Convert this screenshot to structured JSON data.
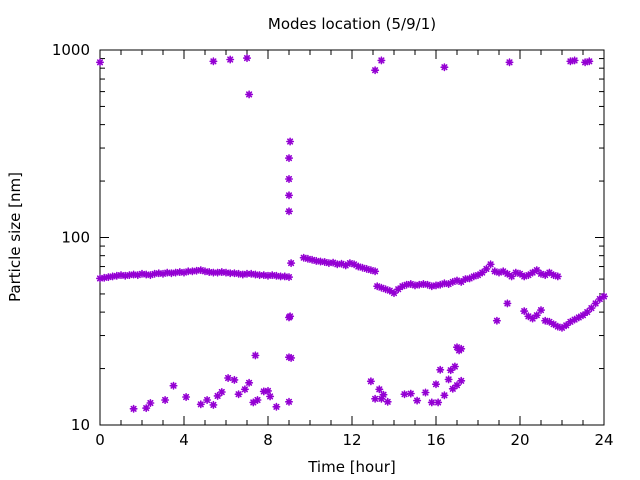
{
  "chart_data": {
    "type": "scatter",
    "title": "Modes location (5/9/1)",
    "xlabel": "Time [hour]",
    "ylabel": "Particle size [nm]",
    "xlim": [
      0,
      24
    ],
    "ylim": [
      10,
      1000
    ],
    "yscale": "log",
    "grid": false,
    "legend": "none",
    "x_ticks": [
      0,
      4,
      8,
      12,
      16,
      20,
      24
    ],
    "x_tick_labels": [
      "0",
      "4",
      "8",
      "12",
      "16",
      "20",
      "24"
    ],
    "y_ticks": [
      10,
      100,
      1000
    ],
    "y_tick_labels": [
      "10",
      "100",
      "1000"
    ],
    "marker": "asterisk",
    "series": [
      {
        "color": "#9400d3",
        "points": [
          [
            0.0,
            860
          ],
          [
            5.4,
            870
          ],
          [
            6.2,
            890
          ],
          [
            7.0,
            905
          ],
          [
            7.1,
            580
          ],
          [
            13.1,
            780
          ],
          [
            13.4,
            880
          ],
          [
            16.4,
            810
          ],
          [
            19.5,
            860
          ],
          [
            22.4,
            870
          ],
          [
            22.6,
            880
          ],
          [
            23.1,
            860
          ],
          [
            23.3,
            870
          ],
          [
            9.05,
            325
          ],
          [
            9.0,
            265
          ],
          [
            9.0,
            205
          ],
          [
            9.0,
            168
          ],
          [
            9.0,
            138
          ],
          [
            9.1,
            73
          ],
          [
            9.0,
            37.5
          ],
          [
            9.05,
            38
          ],
          [
            9.0,
            23
          ],
          [
            9.1,
            22.8
          ],
          [
            9.0,
            13.3
          ],
          [
            0.0,
            60.5
          ],
          [
            0.2,
            61
          ],
          [
            0.4,
            61.5
          ],
          [
            0.6,
            62
          ],
          [
            0.8,
            62.5
          ],
          [
            1.0,
            63
          ],
          [
            1.2,
            62.5
          ],
          [
            1.4,
            63
          ],
          [
            1.6,
            63.5
          ],
          [
            1.8,
            63
          ],
          [
            2.0,
            64
          ],
          [
            2.2,
            63.5
          ],
          [
            2.4,
            63
          ],
          [
            2.6,
            64
          ],
          [
            2.8,
            64.5
          ],
          [
            3.0,
            64
          ],
          [
            3.2,
            65
          ],
          [
            3.4,
            64.5
          ],
          [
            3.6,
            65
          ],
          [
            3.8,
            65.5
          ],
          [
            4.0,
            65
          ],
          [
            4.2,
            66
          ],
          [
            4.4,
            66
          ],
          [
            4.6,
            66.5
          ],
          [
            4.8,
            67
          ],
          [
            5.0,
            66
          ],
          [
            5.2,
            65.5
          ],
          [
            5.4,
            65
          ],
          [
            5.6,
            65
          ],
          [
            5.8,
            65.5
          ],
          [
            6.0,
            65
          ],
          [
            6.2,
            64.5
          ],
          [
            6.4,
            64.5
          ],
          [
            6.6,
            64
          ],
          [
            6.8,
            63.5
          ],
          [
            7.0,
            64
          ],
          [
            7.2,
            64
          ],
          [
            7.4,
            63.5
          ],
          [
            7.6,
            63
          ],
          [
            7.8,
            63
          ],
          [
            8.0,
            62.5
          ],
          [
            8.2,
            63
          ],
          [
            8.4,
            62.5
          ],
          [
            8.6,
            62
          ],
          [
            8.8,
            62
          ],
          [
            9.0,
            61.5
          ],
          [
            9.7,
            78
          ],
          [
            9.9,
            77
          ],
          [
            10.1,
            76
          ],
          [
            10.3,
            75
          ],
          [
            10.5,
            74.5
          ],
          [
            10.7,
            74
          ],
          [
            10.9,
            73
          ],
          [
            11.1,
            73.5
          ],
          [
            11.3,
            72
          ],
          [
            11.5,
            72.5
          ],
          [
            11.7,
            71
          ],
          [
            11.9,
            73
          ],
          [
            12.1,
            72
          ],
          [
            12.3,
            70
          ],
          [
            12.5,
            69
          ],
          [
            12.7,
            68
          ],
          [
            12.9,
            67
          ],
          [
            13.1,
            66
          ],
          [
            13.2,
            55
          ],
          [
            13.4,
            54
          ],
          [
            13.6,
            53
          ],
          [
            13.8,
            52
          ],
          [
            14.0,
            50.5
          ],
          [
            14.2,
            53
          ],
          [
            14.4,
            55
          ],
          [
            14.6,
            56
          ],
          [
            14.8,
            56.5
          ],
          [
            15.0,
            55.5
          ],
          [
            15.2,
            56
          ],
          [
            15.4,
            56.5
          ],
          [
            15.6,
            56
          ],
          [
            15.8,
            55
          ],
          [
            16.0,
            55.5
          ],
          [
            16.2,
            56
          ],
          [
            16.4,
            57
          ],
          [
            16.6,
            56.5
          ],
          [
            16.8,
            58
          ],
          [
            17.0,
            59
          ],
          [
            17.2,
            58
          ],
          [
            17.4,
            60
          ],
          [
            17.6,
            60.5
          ],
          [
            17.8,
            62
          ],
          [
            18.0,
            63
          ],
          [
            18.2,
            65
          ],
          [
            18.4,
            68
          ],
          [
            18.6,
            72
          ],
          [
            18.8,
            66
          ],
          [
            19.0,
            65
          ],
          [
            19.2,
            66
          ],
          [
            19.4,
            64
          ],
          [
            19.6,
            62
          ],
          [
            19.8,
            65
          ],
          [
            20.0,
            64
          ],
          [
            20.2,
            62
          ],
          [
            20.4,
            63
          ],
          [
            20.6,
            65
          ],
          [
            20.8,
            67
          ],
          [
            21.0,
            64
          ],
          [
            21.2,
            63
          ],
          [
            21.4,
            65
          ],
          [
            21.6,
            63
          ],
          [
            21.8,
            62
          ],
          [
            18.9,
            36
          ],
          [
            19.4,
            44.5
          ],
          [
            20.2,
            40.5
          ],
          [
            20.4,
            38
          ],
          [
            20.6,
            37
          ],
          [
            20.8,
            38.5
          ],
          [
            21.0,
            41
          ],
          [
            21.2,
            36
          ],
          [
            21.4,
            35.5
          ],
          [
            21.6,
            34.5
          ],
          [
            21.8,
            33.5
          ],
          [
            22.0,
            33
          ],
          [
            22.2,
            34
          ],
          [
            22.4,
            35.5
          ],
          [
            22.6,
            36.5
          ],
          [
            22.8,
            37.5
          ],
          [
            23.0,
            38.5
          ],
          [
            23.2,
            40
          ],
          [
            23.4,
            42
          ],
          [
            23.6,
            44.5
          ],
          [
            23.8,
            47
          ],
          [
            24.0,
            48.5
          ],
          [
            1.6,
            12.2
          ],
          [
            2.2,
            12.3
          ],
          [
            2.4,
            13.1
          ],
          [
            3.1,
            13.6
          ],
          [
            3.5,
            16.2
          ],
          [
            4.1,
            14.1
          ],
          [
            4.8,
            12.9
          ],
          [
            5.1,
            13.6
          ],
          [
            5.4,
            12.8
          ],
          [
            5.6,
            14.3
          ],
          [
            5.8,
            15.0
          ],
          [
            6.1,
            17.8
          ],
          [
            6.4,
            17.4
          ],
          [
            6.6,
            14.6
          ],
          [
            6.9,
            15.5
          ],
          [
            7.1,
            16.8
          ],
          [
            7.3,
            13.2
          ],
          [
            7.4,
            23.5
          ],
          [
            7.5,
            13.6
          ],
          [
            7.8,
            15.1
          ],
          [
            8.0,
            15.2
          ],
          [
            8.1,
            14.2
          ],
          [
            8.4,
            12.5
          ],
          [
            12.9,
            17.1
          ],
          [
            13.1,
            13.8
          ],
          [
            13.3,
            15.5
          ],
          [
            13.4,
            13.8
          ],
          [
            13.5,
            14.5
          ],
          [
            13.7,
            13.3
          ],
          [
            14.5,
            14.6
          ],
          [
            14.8,
            14.7
          ],
          [
            15.1,
            13.5
          ],
          [
            15.5,
            14.9
          ],
          [
            15.8,
            13.2
          ],
          [
            16.0,
            16.5
          ],
          [
            16.1,
            13.2
          ],
          [
            16.2,
            19.7
          ],
          [
            16.4,
            14.4
          ],
          [
            16.6,
            17.5
          ],
          [
            16.7,
            19.6
          ],
          [
            16.8,
            15.6
          ],
          [
            16.9,
            20.5
          ],
          [
            17.0,
            16.3
          ],
          [
            17.2,
            17.2
          ],
          [
            17.0,
            26
          ],
          [
            17.1,
            25
          ],
          [
            17.2,
            25.5
          ]
        ]
      }
    ]
  }
}
